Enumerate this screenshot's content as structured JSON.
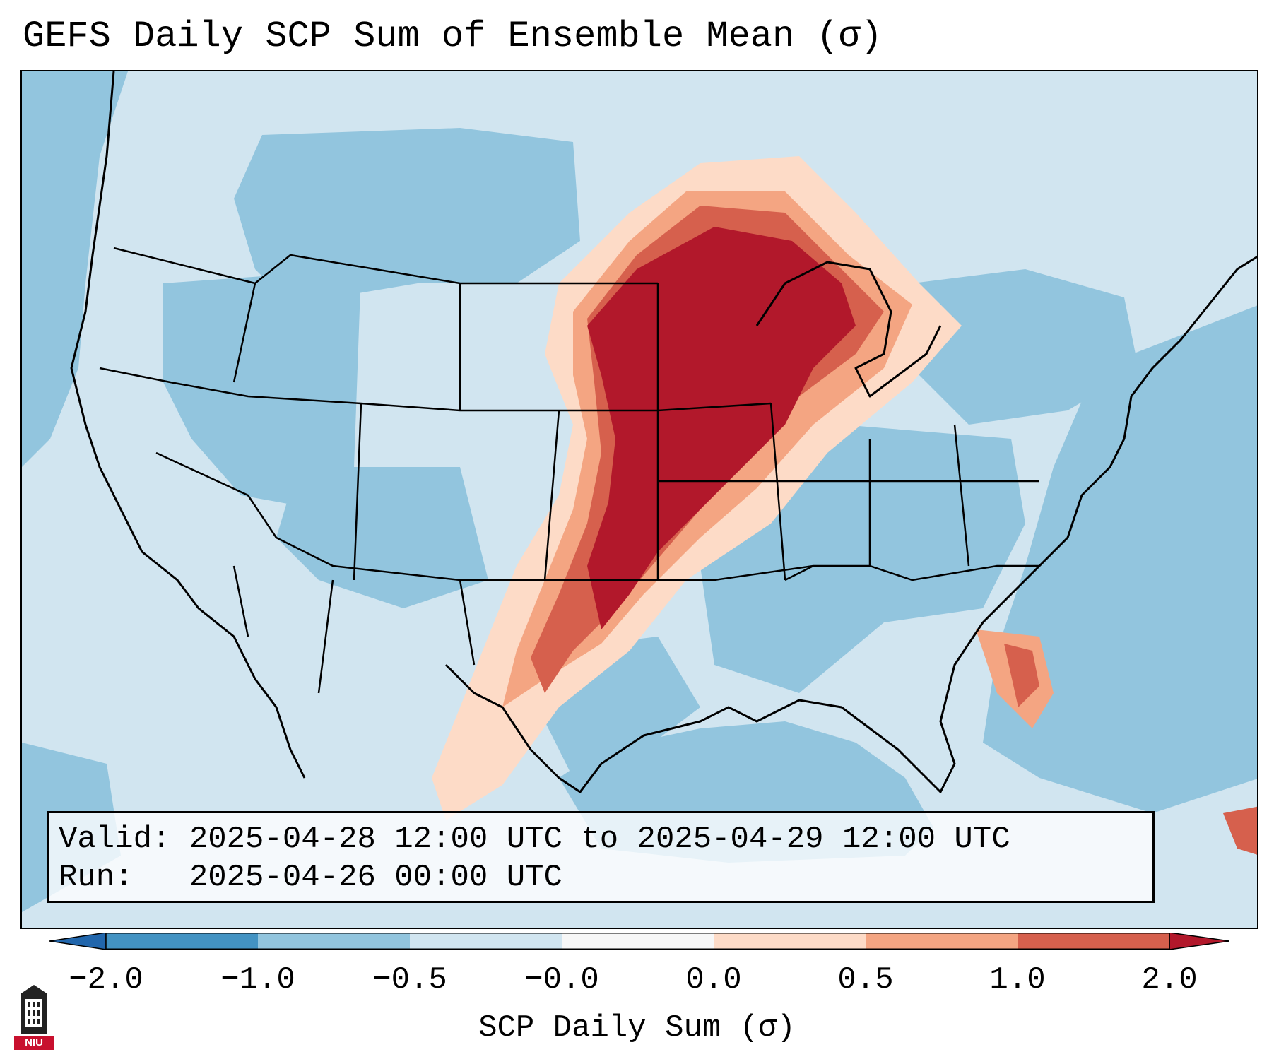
{
  "title": "GEFS Daily SCP Sum of Ensemble Mean (σ)",
  "info": {
    "valid": "Valid: 2025-04-28 12:00 UTC to 2025-04-29 12:00 UTC",
    "run": "Run:   2025-04-26 00:00 UTC"
  },
  "colorbar": {
    "label": "SCP Daily Sum (σ)",
    "ticks": [
      "−2.0",
      "−1.0",
      "−0.5",
      "−0.0",
      "0.0",
      "0.5",
      "1.0",
      "2.0"
    ],
    "colors": [
      "#2166ac",
      "#4393c3",
      "#92c5de",
      "#d1e5f0",
      "#f7f7f7",
      "#fddbc7",
      "#f4a582",
      "#d6604d",
      "#b2182b"
    ]
  },
  "map": {
    "background_color": "#d1e5f0",
    "ocean_color": "#92c5de",
    "region": "Contiguous United States"
  },
  "logo": {
    "text": "NIU"
  }
}
